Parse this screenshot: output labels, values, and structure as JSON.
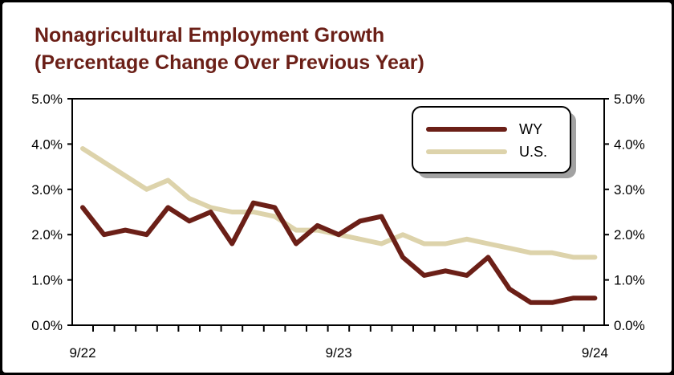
{
  "chart_data": {
    "type": "line",
    "title_line1": "Nonagricultural Employment Growth",
    "title_line2": "(Percentage Change Over Previous Year)",
    "x_tick_labels": [
      "9/22",
      "9/23",
      "9/24"
    ],
    "y_tick_labels": [
      "0.0%",
      "1.0%",
      "2.0%",
      "3.0%",
      "4.0%",
      "5.0%"
    ],
    "ylim": [
      0,
      5
    ],
    "grid": false,
    "legend_position": "top-right",
    "series": [
      {
        "name": "WY",
        "color": "#6b1f17",
        "values": [
          2.6,
          2.0,
          2.1,
          2.0,
          2.6,
          2.3,
          2.5,
          1.8,
          2.7,
          2.6,
          1.8,
          2.2,
          2.0,
          2.3,
          2.4,
          1.5,
          1.1,
          1.2,
          1.1,
          1.5,
          0.8,
          0.5,
          0.5,
          0.6,
          0.6
        ]
      },
      {
        "name": "U.S.",
        "color": "#ddd3ab",
        "values": [
          3.9,
          3.6,
          3.3,
          3.0,
          3.2,
          2.8,
          2.6,
          2.5,
          2.5,
          2.4,
          2.1,
          2.1,
          2.0,
          1.9,
          1.8,
          2.0,
          1.8,
          1.8,
          1.9,
          1.8,
          1.7,
          1.6,
          1.6,
          1.5,
          1.5
        ]
      }
    ]
  }
}
